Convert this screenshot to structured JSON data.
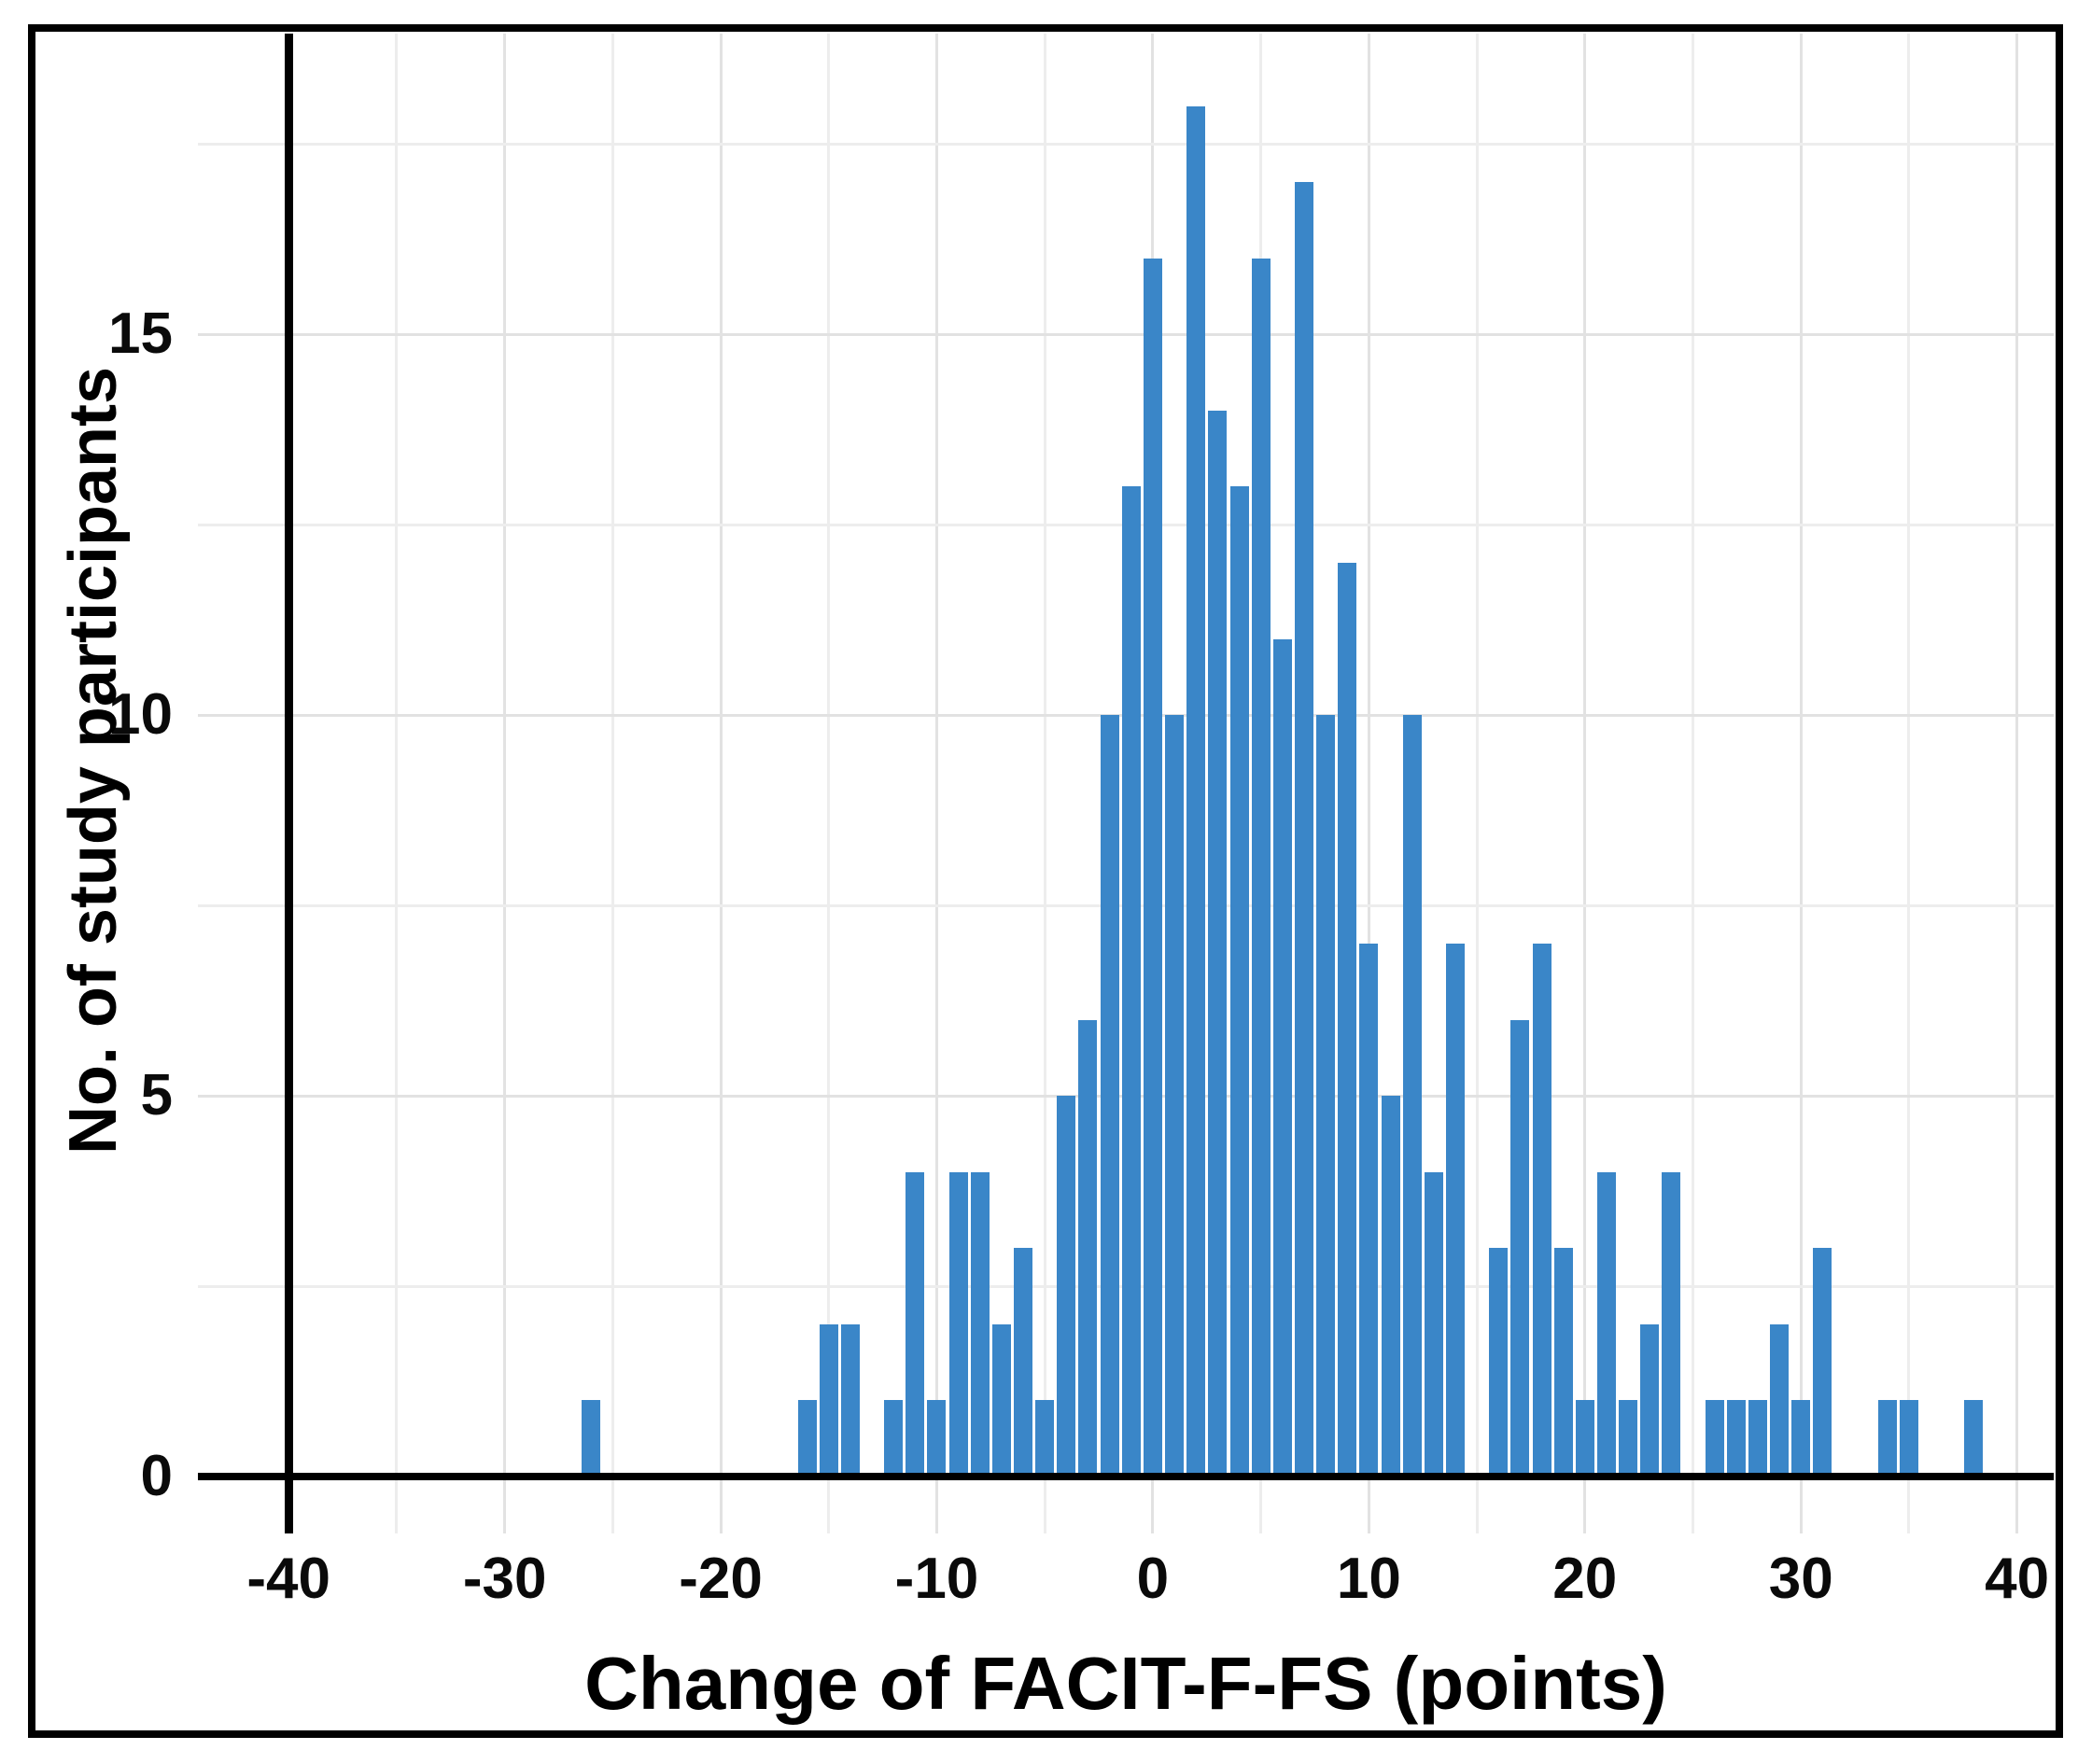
{
  "figure": {
    "background_color": "#ffffff",
    "border_color": "#000000"
  },
  "chart_data": {
    "type": "bar",
    "subtype": "histogram",
    "title": "",
    "xlabel": "Change of FACIT-F-FS (points)",
    "ylabel": "No. of study participants",
    "bar_color": "#3a86c8",
    "axis_line_color": "#000000",
    "gridline_major_color": "#e2e2e2",
    "gridline_minor_color": "#ededed",
    "grid": true,
    "legend": false,
    "bin_width": 1,
    "x_domain": [
      -44.2,
      41.7
    ],
    "ylim": [
      0,
      18.95
    ],
    "x_tick_values": [
      -40,
      -30,
      -20,
      -10,
      0,
      10,
      20,
      30,
      40
    ],
    "x_tick_labels": [
      "-40",
      "-30",
      "-20",
      "-10",
      "0",
      "10",
      "20",
      "30",
      "40"
    ],
    "x_gridline_values": [
      -40,
      -35,
      -30,
      -25,
      -20,
      -15,
      -10,
      -5,
      0,
      5,
      10,
      15,
      20,
      25,
      30,
      35,
      40
    ],
    "y_tick_values": [
      0,
      5,
      10,
      15
    ],
    "y_tick_labels": [
      "0",
      "5",
      "10",
      "15"
    ],
    "y_gridline_major_values": [
      5,
      10,
      15
    ],
    "y_gridline_minor_values": [
      2.5,
      7.5,
      12.5,
      17.5
    ],
    "bins": [
      {
        "x": -26,
        "n": 1
      },
      {
        "x": -16,
        "n": 1
      },
      {
        "x": -15,
        "n": 2
      },
      {
        "x": -14,
        "n": 2
      },
      {
        "x": -12,
        "n": 1
      },
      {
        "x": -11,
        "n": 4
      },
      {
        "x": -10,
        "n": 1
      },
      {
        "x": -9,
        "n": 4
      },
      {
        "x": -8,
        "n": 4
      },
      {
        "x": -7,
        "n": 2
      },
      {
        "x": -6,
        "n": 3
      },
      {
        "x": -5,
        "n": 1
      },
      {
        "x": -4,
        "n": 5
      },
      {
        "x": -3,
        "n": 6
      },
      {
        "x": -2,
        "n": 10
      },
      {
        "x": -1,
        "n": 13
      },
      {
        "x": 0,
        "n": 16
      },
      {
        "x": 1,
        "n": 10
      },
      {
        "x": 2,
        "n": 18
      },
      {
        "x": 3,
        "n": 14
      },
      {
        "x": 4,
        "n": 13
      },
      {
        "x": 5,
        "n": 16
      },
      {
        "x": 6,
        "n": 11
      },
      {
        "x": 7,
        "n": 17
      },
      {
        "x": 8,
        "n": 10
      },
      {
        "x": 9,
        "n": 12
      },
      {
        "x": 10,
        "n": 7
      },
      {
        "x": 11,
        "n": 5
      },
      {
        "x": 12,
        "n": 10
      },
      {
        "x": 13,
        "n": 4
      },
      {
        "x": 14,
        "n": 7
      },
      {
        "x": 16,
        "n": 3
      },
      {
        "x": 17,
        "n": 6
      },
      {
        "x": 18,
        "n": 7
      },
      {
        "x": 19,
        "n": 3
      },
      {
        "x": 20,
        "n": 1
      },
      {
        "x": 21,
        "n": 4
      },
      {
        "x": 22,
        "n": 1
      },
      {
        "x": 23,
        "n": 2
      },
      {
        "x": 24,
        "n": 4
      },
      {
        "x": 26,
        "n": 1
      },
      {
        "x": 27,
        "n": 1
      },
      {
        "x": 28,
        "n": 1
      },
      {
        "x": 29,
        "n": 2
      },
      {
        "x": 30,
        "n": 1
      },
      {
        "x": 31,
        "n": 3
      },
      {
        "x": 34,
        "n": 1
      },
      {
        "x": 35,
        "n": 1
      },
      {
        "x": 38,
        "n": 1
      }
    ]
  }
}
